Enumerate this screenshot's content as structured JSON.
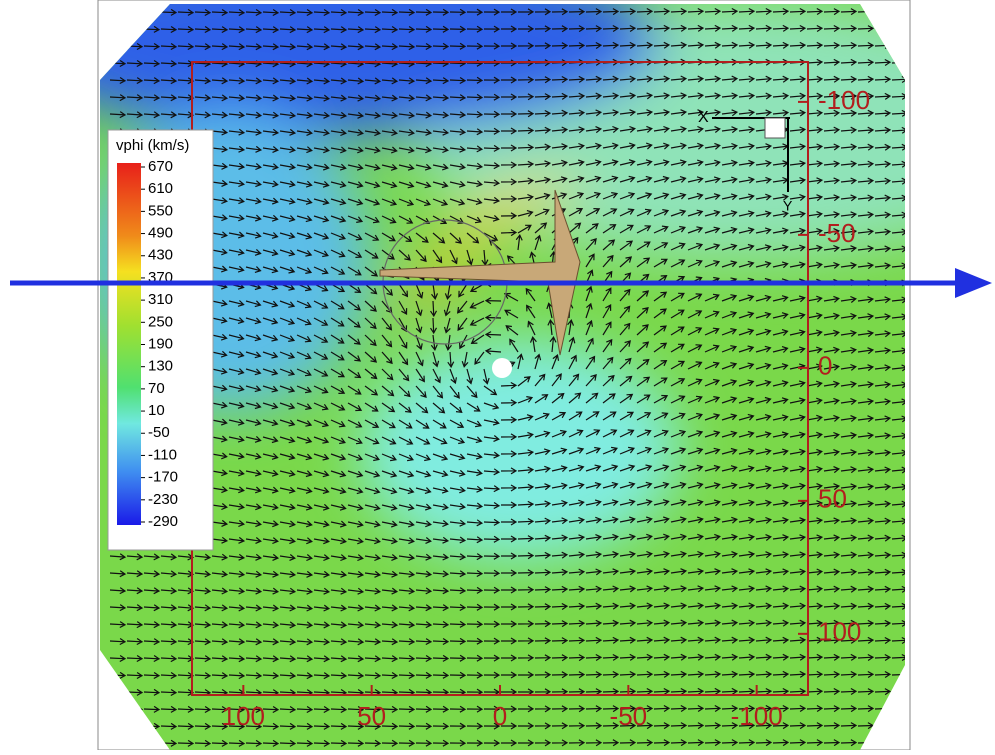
{
  "chart_data": {
    "type": "vector-field",
    "xlim": [
      120,
      -120
    ],
    "xticks": [
      100,
      50,
      0,
      -50,
      -100
    ],
    "ylim": [
      -115,
      123
    ],
    "yticks": [
      -100,
      -50,
      0,
      50,
      100
    ],
    "colorbar": {
      "title": "vphi (km/s)",
      "clim": [
        -290,
        670
      ],
      "ticks": [
        670,
        610,
        550,
        490,
        430,
        370,
        310,
        250,
        190,
        130,
        70,
        10,
        -50,
        -110,
        -170,
        -230,
        -290
      ]
    },
    "axis_indicator": {
      "x_label": "X",
      "y_label": "Y"
    }
  }
}
